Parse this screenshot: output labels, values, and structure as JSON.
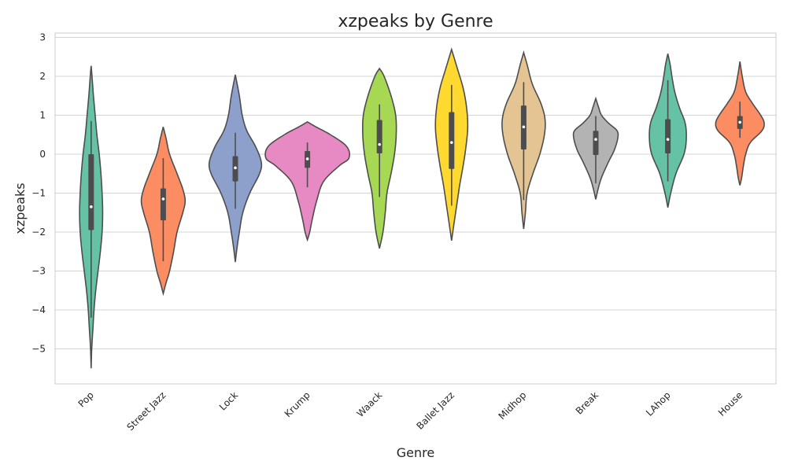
{
  "chart_data": {
    "type": "violin",
    "title": "xzpeaks by Genre",
    "xlabel": "Genre",
    "ylabel": "xzpeaks",
    "ylim": [
      -5.9,
      3.1
    ],
    "yticks": [
      3,
      2,
      1,
      0,
      -1,
      -2,
      -3,
      -4,
      -5
    ],
    "ytick_labels": [
      "3",
      "2",
      "1",
      "0",
      "−1",
      "−2",
      "−3",
      "−4",
      "−5"
    ],
    "grid": "horizontal",
    "categories": [
      "Pop",
      "Street Jazz",
      "Lock",
      "Krump",
      "Waack",
      "Ballet Jazz",
      "Midhop",
      "Break",
      "LAhop",
      "House"
    ],
    "violins": [
      {
        "color": "#66c2a5",
        "median": -1.35,
        "q1": -1.95,
        "q3": 0.0,
        "whisker_low": -4.2,
        "whisker_high": 0.85,
        "profile": [
          [
            -5.5,
            0
          ],
          [
            -5.0,
            0.01
          ],
          [
            -4.5,
            0.03
          ],
          [
            -4.0,
            0.05
          ],
          [
            -3.5,
            0.08
          ],
          [
            -3.0,
            0.12
          ],
          [
            -2.5,
            0.16
          ],
          [
            -2.0,
            0.19
          ],
          [
            -1.5,
            0.2
          ],
          [
            -1.0,
            0.19
          ],
          [
            -0.5,
            0.17
          ],
          [
            0.0,
            0.14
          ],
          [
            0.5,
            0.1
          ],
          [
            1.0,
            0.07
          ],
          [
            1.5,
            0.04
          ],
          [
            2.0,
            0.015
          ],
          [
            2.27,
            0
          ]
        ]
      },
      {
        "color": "#fc8d62",
        "median": -1.15,
        "q1": -1.7,
        "q3": -0.88,
        "whisker_low": -2.75,
        "whisker_high": -0.1,
        "profile": [
          [
            -3.58,
            0
          ],
          [
            -3.3,
            0.05
          ],
          [
            -3.0,
            0.11
          ],
          [
            -2.5,
            0.18
          ],
          [
            -2.0,
            0.24
          ],
          [
            -1.5,
            0.34
          ],
          [
            -1.2,
            0.38
          ],
          [
            -0.9,
            0.34
          ],
          [
            -0.5,
            0.24
          ],
          [
            0.0,
            0.11
          ],
          [
            0.4,
            0.05
          ],
          [
            0.7,
            0
          ]
        ]
      },
      {
        "color": "#8da0cb",
        "median": -0.35,
        "q1": -0.7,
        "q3": -0.05,
        "whisker_low": -1.4,
        "whisker_high": 0.55,
        "profile": [
          [
            -2.77,
            0
          ],
          [
            -2.4,
            0.03
          ],
          [
            -2.0,
            0.07
          ],
          [
            -1.5,
            0.13
          ],
          [
            -1.0,
            0.25
          ],
          [
            -0.5,
            0.42
          ],
          [
            -0.2,
            0.45
          ],
          [
            0.2,
            0.35
          ],
          [
            0.6,
            0.2
          ],
          [
            1.0,
            0.12
          ],
          [
            1.5,
            0.07
          ],
          [
            2.04,
            0
          ]
        ]
      },
      {
        "color": "#e78ac3",
        "median": -0.12,
        "q1": -0.35,
        "q3": 0.08,
        "whisker_low": -0.85,
        "whisker_high": 0.3,
        "profile": [
          [
            -2.2,
            0
          ],
          [
            -2.0,
            0.04
          ],
          [
            -1.7,
            0.08
          ],
          [
            -1.2,
            0.16
          ],
          [
            -0.7,
            0.28
          ],
          [
            -0.3,
            0.55
          ],
          [
            -0.1,
            0.72
          ],
          [
            0.2,
            0.68
          ],
          [
            0.5,
            0.4
          ],
          [
            0.7,
            0.15
          ],
          [
            0.83,
            0
          ]
        ]
      },
      {
        "color": "#a6d854",
        "median": 0.25,
        "q1": 0.02,
        "q3": 0.88,
        "whisker_low": -1.1,
        "whisker_high": 1.28,
        "profile": [
          [
            -2.42,
            0
          ],
          [
            -2.0,
            0.06
          ],
          [
            -1.5,
            0.1
          ],
          [
            -1.0,
            0.13
          ],
          [
            -0.5,
            0.2
          ],
          [
            0.0,
            0.26
          ],
          [
            0.5,
            0.29
          ],
          [
            1.0,
            0.28
          ],
          [
            1.5,
            0.2
          ],
          [
            2.0,
            0.08
          ],
          [
            2.2,
            0
          ]
        ]
      },
      {
        "color": "#ffd92f",
        "median": 0.3,
        "q1": -0.38,
        "q3": 1.08,
        "whisker_low": -1.32,
        "whisker_high": 1.78,
        "profile": [
          [
            -2.22,
            0
          ],
          [
            -1.8,
            0.04
          ],
          [
            -1.3,
            0.09
          ],
          [
            -0.8,
            0.14
          ],
          [
            -0.3,
            0.2
          ],
          [
            0.2,
            0.25
          ],
          [
            0.7,
            0.28
          ],
          [
            1.2,
            0.26
          ],
          [
            1.7,
            0.2
          ],
          [
            2.2,
            0.1
          ],
          [
            2.69,
            0
          ]
        ]
      },
      {
        "color": "#e5c494",
        "median": 0.7,
        "q1": 0.12,
        "q3": 1.25,
        "whisker_low": -1.18,
        "whisker_high": 1.85,
        "profile": [
          [
            -1.92,
            0
          ],
          [
            -1.5,
            0.03
          ],
          [
            -1.0,
            0.06
          ],
          [
            -0.5,
            0.16
          ],
          [
            0.0,
            0.28
          ],
          [
            0.5,
            0.36
          ],
          [
            0.9,
            0.37
          ],
          [
            1.3,
            0.3
          ],
          [
            1.8,
            0.15
          ],
          [
            2.3,
            0.06
          ],
          [
            2.61,
            0
          ]
        ]
      },
      {
        "color": "#b3b3b3",
        "median": 0.38,
        "q1": -0.02,
        "q3": 0.6,
        "whisker_low": -0.75,
        "whisker_high": 0.98,
        "profile": [
          [
            -1.16,
            0
          ],
          [
            -0.9,
            0.04
          ],
          [
            -0.6,
            0.1
          ],
          [
            -0.2,
            0.22
          ],
          [
            0.1,
            0.32
          ],
          [
            0.4,
            0.38
          ],
          [
            0.6,
            0.37
          ],
          [
            0.8,
            0.22
          ],
          [
            1.0,
            0.1
          ],
          [
            1.2,
            0.05
          ],
          [
            1.43,
            0
          ]
        ]
      },
      {
        "color": "#66c2a5",
        "median": 0.38,
        "q1": 0.02,
        "q3": 0.9,
        "whisker_low": -0.7,
        "whisker_high": 1.9,
        "profile": [
          [
            -1.37,
            0
          ],
          [
            -1.0,
            0.05
          ],
          [
            -0.5,
            0.14
          ],
          [
            0.0,
            0.28
          ],
          [
            0.4,
            0.32
          ],
          [
            0.8,
            0.3
          ],
          [
            1.2,
            0.2
          ],
          [
            1.6,
            0.12
          ],
          [
            2.0,
            0.07
          ],
          [
            2.3,
            0.04
          ],
          [
            2.58,
            0
          ]
        ]
      },
      {
        "color": "#fc8d62",
        "median": 0.82,
        "q1": 0.65,
        "q3": 0.98,
        "whisker_low": 0.42,
        "whisker_high": 1.35,
        "profile": [
          [
            -0.8,
            0
          ],
          [
            -0.6,
            0.03
          ],
          [
            -0.3,
            0.06
          ],
          [
            0.0,
            0.1
          ],
          [
            0.3,
            0.18
          ],
          [
            0.6,
            0.38
          ],
          [
            0.8,
            0.42
          ],
          [
            1.0,
            0.36
          ],
          [
            1.3,
            0.22
          ],
          [
            1.6,
            0.1
          ],
          [
            2.0,
            0.04
          ],
          [
            2.38,
            0
          ]
        ]
      }
    ]
  }
}
